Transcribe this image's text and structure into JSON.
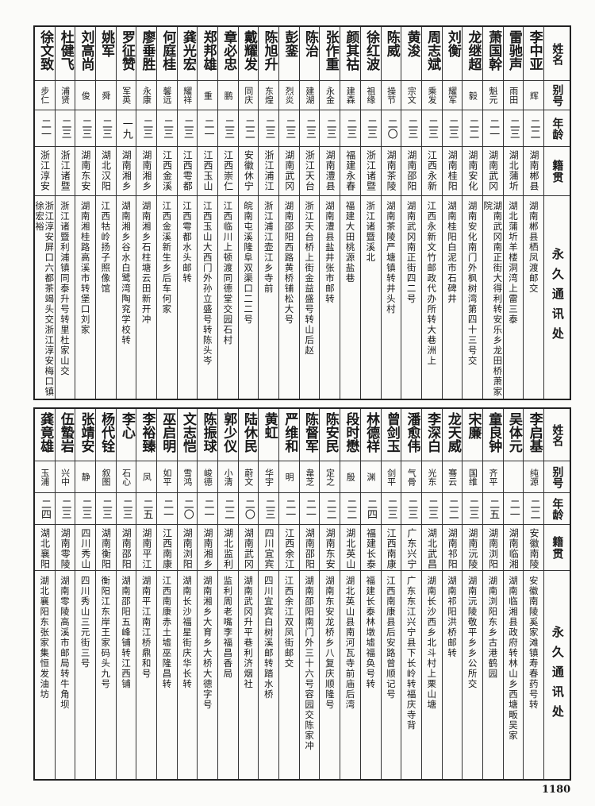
{
  "headers": {
    "name": "姓名",
    "alias": "别号",
    "age": "年龄",
    "origin": "籍贯",
    "address": "永久通讯处"
  },
  "top": [
    {
      "name": "李中亚",
      "alias": "辉",
      "age": "二二",
      "origin": "湖南郴县",
      "address": "湖南郴县栖凤渡邮交"
    },
    {
      "name": "雷驰声",
      "alias": "雨田",
      "age": "二三",
      "origin": "湖北蒲圻",
      "address": "湖北蒲圻羊楼洞湾上雷三泰"
    },
    {
      "name": "萧国幹",
      "alias": "魁元",
      "age": "二一",
      "origin": "湖南武冈",
      "address": "湖南武冈南正街大得利转安乐乡龙田桥萧家院"
    },
    {
      "name": "龙继超",
      "alias": "毅",
      "age": "二二",
      "origin": "湖南安化",
      "address": "湖南安化南门外枫树湾第四十三号交"
    },
    {
      "name": "刘衡",
      "alias": "耀军",
      "age": "二三",
      "origin": "湖南桂阳",
      "address": "湖南桂阳白泥市石碑井"
    },
    {
      "name": "周志斌",
      "alias": "乘发",
      "age": "二三",
      "origin": "江西永新",
      "address": "江西永新文竹邮政代办所转大巷洲上"
    },
    {
      "name": "黄浚",
      "alias": "宗文",
      "age": "二三",
      "origin": "湖南邵阳",
      "address": "湖南武冈南正街四二号"
    },
    {
      "name": "陈威",
      "alias": "操节",
      "age": "二〇",
      "origin": "湖南茶陵",
      "address": "湖南茶陵严塘镇转井头村"
    },
    {
      "name": "徐红波",
      "alias": "祖缘",
      "age": "二三",
      "origin": "浙江诸暨",
      "address": "浙江诸暨溪北"
    },
    {
      "name": "颜其祜",
      "alias": "建森",
      "age": "二三",
      "origin": "福建永春",
      "address": "福建大田桃源盐巷"
    },
    {
      "name": "张作重",
      "alias": "永金",
      "age": "二三",
      "origin": "湖南澧县",
      "address": "湖南澧县盐井张市邮转"
    },
    {
      "name": "陈治",
      "alias": "建湖",
      "age": "二三",
      "origin": "浙江天台",
      "address": "浙江天台桥上街金益盛号转山后赵"
    },
    {
      "name": "彭銮",
      "alias": "烈炎",
      "age": "二三",
      "origin": "湖南武冈",
      "address": "湖南邵阳西路黄桥铺松大号"
    },
    {
      "name": "陈旭升",
      "alias": "东煌",
      "age": "二三",
      "origin": "浙江浦江",
      "address": "浙江浦江壶江乡寺前"
    },
    {
      "name": "戴耀发",
      "alias": "同庆",
      "age": "二二",
      "origin": "安徽休宁",
      "address": "皖南屯溪隆阜双渠口二二号"
    },
    {
      "name": "章必忠",
      "alias": "鹏",
      "age": "二三",
      "origin": "江西崇仁",
      "address": "江西临川上顿渡同德堂交园石村"
    },
    {
      "name": "郑邦雄",
      "alias": "重",
      "age": "二一",
      "origin": "江西玉山",
      "address": "江西玉山大西门外孙立盛号转陈头岑"
    },
    {
      "name": "龚光宏",
      "alias": "耀祥",
      "age": "二三",
      "origin": "江西雩都",
      "address": "江西雩都水头邮转"
    },
    {
      "name": "何庭桂",
      "alias": "馨远",
      "age": "二三",
      "origin": "江西金溪",
      "address": "江西金溪新生乡后车何家"
    },
    {
      "name": "廖垂胜",
      "alias": "永康",
      "age": "二三",
      "origin": "湖南湘乡",
      "address": "湖南湘乡石柱塘云田新开冲"
    },
    {
      "name": "罗征赞",
      "alias": "军英",
      "age": "一九",
      "origin": "湖南湘乡",
      "address": "湖南湘乡谷水白鹭湾陶兖学校转"
    },
    {
      "name": "姚军",
      "alias": "舜",
      "age": "二三",
      "origin": "湖北汉阳",
      "address": "江西牯岭扬子照像馆"
    },
    {
      "name": "刘高尚",
      "alias": "俊",
      "age": "二三",
      "origin": "湖南东安",
      "address": "湖南湘桂路高溪市转堡口刘家"
    },
    {
      "name": "杜健飞",
      "alias": "浦贤",
      "age": "二三",
      "origin": "浙江诸暨",
      "address": "浙江诸暨利浦镇同泰升号转里杜家山交"
    },
    {
      "name": "徐文致",
      "alias": "步仁",
      "age": "二一",
      "origin": "浙江淳安",
      "address": "浙江淳安屏口六都茶竭头交浙江淳安梅口镇徐宏裕"
    }
  ],
  "bottom": [
    {
      "name": "李启基",
      "alias": "纯源",
      "age": "二二",
      "origin": "安徽南陵",
      "address": "安徽南陵奚家滩镇寿春药号转"
    },
    {
      "name": "吴体元",
      "alias": "",
      "age": "二一",
      "origin": "湖南临湘",
      "address": "湖南临湘县政府转林山乡西塘畈吴家"
    },
    {
      "name": "童良钟",
      "alias": "齐平",
      "age": "二五",
      "origin": "湖南浏阳",
      "address": "湖南浏阳东乡古港鹤园"
    },
    {
      "name": "宋廉",
      "alias": "国维",
      "age": "二三",
      "origin": "湖南沅陵",
      "address": "湖南沅陵敬平乡乡公所交"
    },
    {
      "name": "龙天威",
      "alias": "骞云",
      "age": "二二",
      "origin": "湖南祁阳",
      "address": "湖南祁阳洪桥邮转"
    },
    {
      "name": "李深白",
      "alias": "光东",
      "age": "二三",
      "origin": "湖北武昌",
      "address": "湖南长沙西乡北斗村上栗山塘"
    },
    {
      "name": "潘愈伟",
      "alias": "气骨",
      "age": "二三",
      "origin": "广东兴宁",
      "address": "广东东江兴宁县下长岭转福庆寺背"
    },
    {
      "name": "曾剑玉",
      "alias": "剑平",
      "age": "二三",
      "origin": "江西南康",
      "address": "江西南康县后安路曾顺记号"
    },
    {
      "name": "林德祥",
      "alias": "渊",
      "age": "二四",
      "origin": "福建长泰",
      "address": "福建长泰林墩墟福奂号转"
    },
    {
      "name": "段时懋",
      "alias": "殷",
      "age": "二二",
      "origin": "湖北英山",
      "address": "湖北英山县南河瓦寺前庙后湾"
    },
    {
      "name": "陈安民",
      "alias": "定之",
      "age": "二二",
      "origin": "湖南东安",
      "address": "湖南东安龙桥乡八复庆顺隆号"
    },
    {
      "name": "陈督军",
      "alias": "韋芝",
      "age": "二一",
      "origin": "湖南邵阳",
      "address": "湖南邵阳南门外三十六号容园交陈家冲"
    },
    {
      "name": "严维和",
      "alias": "明",
      "age": "二一",
      "origin": "江西余江",
      "address": "江西余江双凤街邮交"
    },
    {
      "name": "黄虹",
      "alias": "华宇",
      "age": "二三",
      "origin": "四川宜宾",
      "address": "四川宜宾白树溪邮转踏水桥"
    },
    {
      "name": "陆休民",
      "alias": "蔚文",
      "age": "二〇",
      "origin": "湖南武冈",
      "address": "湖南武冈升平巷利济烟社"
    },
    {
      "name": "郭少仪",
      "alias": "小清",
      "age": "二二",
      "origin": "湖北监利",
      "address": "监利周老嘴李福昌香局"
    },
    {
      "name": "陈振球",
      "alias": "峻德",
      "age": "二一",
      "origin": "湖南湘乡",
      "address": "湖南湘乡大育乡大桥大德字号"
    },
    {
      "name": "文志恺",
      "alias": "雪鸿",
      "age": "二〇",
      "origin": "湖南浏阳",
      "address": "湖南长沙福星街庆华长转"
    },
    {
      "name": "巫启明",
      "alias": "如平",
      "age": "二一",
      "origin": "江西南康",
      "address": "江西南康赤土墟巫隆昌转"
    },
    {
      "name": "李裕臻",
      "alias": "凤",
      "age": "二五",
      "origin": "湖南平江",
      "address": "湖南平江南江桥鼎和号"
    },
    {
      "name": "李心",
      "alias": "石心",
      "age": "二三",
      "origin": "湖南邵阳",
      "address": "湖南邵阳五峰铺转江西铺"
    },
    {
      "name": "杨代铨",
      "alias": "叙图",
      "age": "二三",
      "origin": "湖南衡阳",
      "address": "衡阳江东岸王家码头九号"
    },
    {
      "name": "张靖安",
      "alias": "静",
      "age": "二三",
      "origin": "四川秀山",
      "address": "四川秀山三元街三号"
    },
    {
      "name": "伍蟄岩",
      "alias": "兴中",
      "age": "二三",
      "origin": "湖南零陵",
      "address": "湖南零陵高溪市邮局转牛角坝"
    },
    {
      "name": "龚竟雄",
      "alias": "玉浦",
      "age": "二四",
      "origin": "湖北襄阳",
      "address": "湖北襄阳东张家集恒发油坊"
    }
  ],
  "page_number": "1180"
}
